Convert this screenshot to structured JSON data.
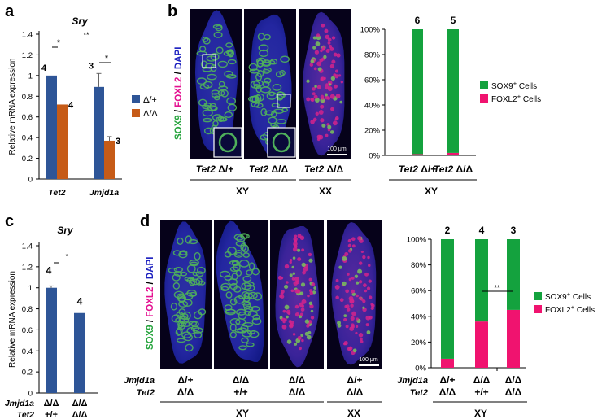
{
  "colors": {
    "blue": "#2e5597",
    "orange": "#c65b17",
    "green": "#14a23e",
    "pink": "#f0136f",
    "micro_bg": "#06021a",
    "sox9_text": "#25a33c",
    "foxl2_text": "#e41291",
    "dapi_text": "#1e22c0"
  },
  "panels": {
    "a": "a",
    "b": "b",
    "c": "c",
    "d": "d"
  },
  "stain_label": {
    "sox9": "SOX9",
    "sep1": " / ",
    "foxl2": "FOXL2",
    "sep2": " / ",
    "dapi": "DAPI"
  },
  "scale_bar": "100 μm",
  "panel_b_images": {
    "genotypes": [
      "Tet2 Δ/+",
      "Tet2 Δ/Δ",
      "Tet2 Δ/Δ"
    ],
    "sex_groups": [
      "XY",
      "XX"
    ]
  },
  "panel_d_images": {
    "row_labels": [
      "Jmjd1a",
      "Tet2"
    ],
    "columns": [
      {
        "jmjd1a": "Δ/+",
        "tet2": "Δ/Δ"
      },
      {
        "jmjd1a": "Δ/Δ",
        "tet2": "+/+"
      },
      {
        "jmjd1a": "Δ/Δ",
        "tet2": "Δ/Δ"
      },
      {
        "jmjd1a": "Δ/+",
        "tet2": "Δ/Δ"
      }
    ],
    "sex_groups": [
      "XY",
      "XX"
    ]
  },
  "chart_data": [
    {
      "panel": "a",
      "type": "bar",
      "title": "Sry",
      "ylabel": "Relative mRNA expression",
      "ylim": [
        0,
        1.4
      ],
      "yticks": [
        "0",
        "0.2",
        "0.4",
        "0.6",
        "0.8",
        "1",
        "1.2",
        "1.4"
      ],
      "categories": [
        "Tet2",
        "Jmjd1a"
      ],
      "series": [
        {
          "name": "Δ/+",
          "values": [
            1.0,
            0.89
          ],
          "errors": [
            0,
            0.13
          ],
          "n": [
            "4",
            "3"
          ]
        },
        {
          "name": "Δ/Δ",
          "values": [
            0.72,
            0.37
          ],
          "errors": [
            0,
            0.04
          ],
          "n": [
            "4",
            "3"
          ]
        }
      ],
      "significance": [
        "*",
        "**",
        "*"
      ],
      "legend_position": "right"
    },
    {
      "panel": "b",
      "type": "bar",
      "stacked": true,
      "ylim": [
        0,
        100
      ],
      "yticks": [
        "0%",
        "20%",
        "40%",
        "60%",
        "80%",
        "100%"
      ],
      "categories": [
        "Tet2 Δ/+",
        "Tet2 Δ/Δ"
      ],
      "n": [
        "6",
        "5"
      ],
      "series": [
        {
          "name": "FOXL2+ Cells",
          "label": "FOXL2",
          "sup": "+",
          "suffix": " Cells",
          "values": [
            1,
            2
          ]
        },
        {
          "name": "SOX9+ Cells",
          "label": "SOX9",
          "sup": "+",
          "suffix": " Cells",
          "values": [
            99,
            98
          ]
        }
      ],
      "group_label": "XY",
      "legend_position": "right"
    },
    {
      "panel": "c",
      "type": "bar",
      "title": "Sry",
      "ylabel": "Relative mRNA expression",
      "ylim": [
        0,
        1.4
      ],
      "yticks": [
        "0",
        "0.2",
        "0.4",
        "0.6",
        "0.8",
        "1",
        "1.2",
        "1.4"
      ],
      "row_labels": [
        "Jmjd1a",
        "Tet2"
      ],
      "categories": [
        {
          "jmjd1a": "Δ/Δ",
          "tet2": "+/+"
        },
        {
          "jmjd1a": "Δ/Δ",
          "tet2": "Δ/Δ"
        }
      ],
      "values": [
        1.0,
        0.76
      ],
      "errors": [
        0.01,
        0
      ],
      "n": [
        "4",
        "4"
      ],
      "significance": [
        "*"
      ]
    },
    {
      "panel": "d",
      "type": "bar",
      "stacked": true,
      "ylim": [
        0,
        100
      ],
      "yticks": [
        "0%",
        "20%",
        "40%",
        "60%",
        "80%",
        "100%"
      ],
      "row_labels": [
        "Jmjd1a",
        "Tet2"
      ],
      "categories": [
        {
          "jmjd1a": "Δ/+",
          "tet2": "Δ/Δ"
        },
        {
          "jmjd1a": "Δ/Δ",
          "tet2": "+/+"
        },
        {
          "jmjd1a": "Δ/Δ",
          "tet2": "Δ/Δ"
        }
      ],
      "n": [
        "2",
        "4",
        "3"
      ],
      "series": [
        {
          "name": "FOXL2+ Cells",
          "label": "FOXL2",
          "sup": "+",
          "suffix": " Cells",
          "values": [
            7,
            36,
            45
          ]
        },
        {
          "name": "SOX9+ Cells",
          "label": "SOX9",
          "sup": "+",
          "suffix": " Cells",
          "values": [
            93,
            64,
            55
          ]
        }
      ],
      "significance": [
        "**"
      ],
      "group_label": "XY",
      "legend_position": "right"
    }
  ]
}
